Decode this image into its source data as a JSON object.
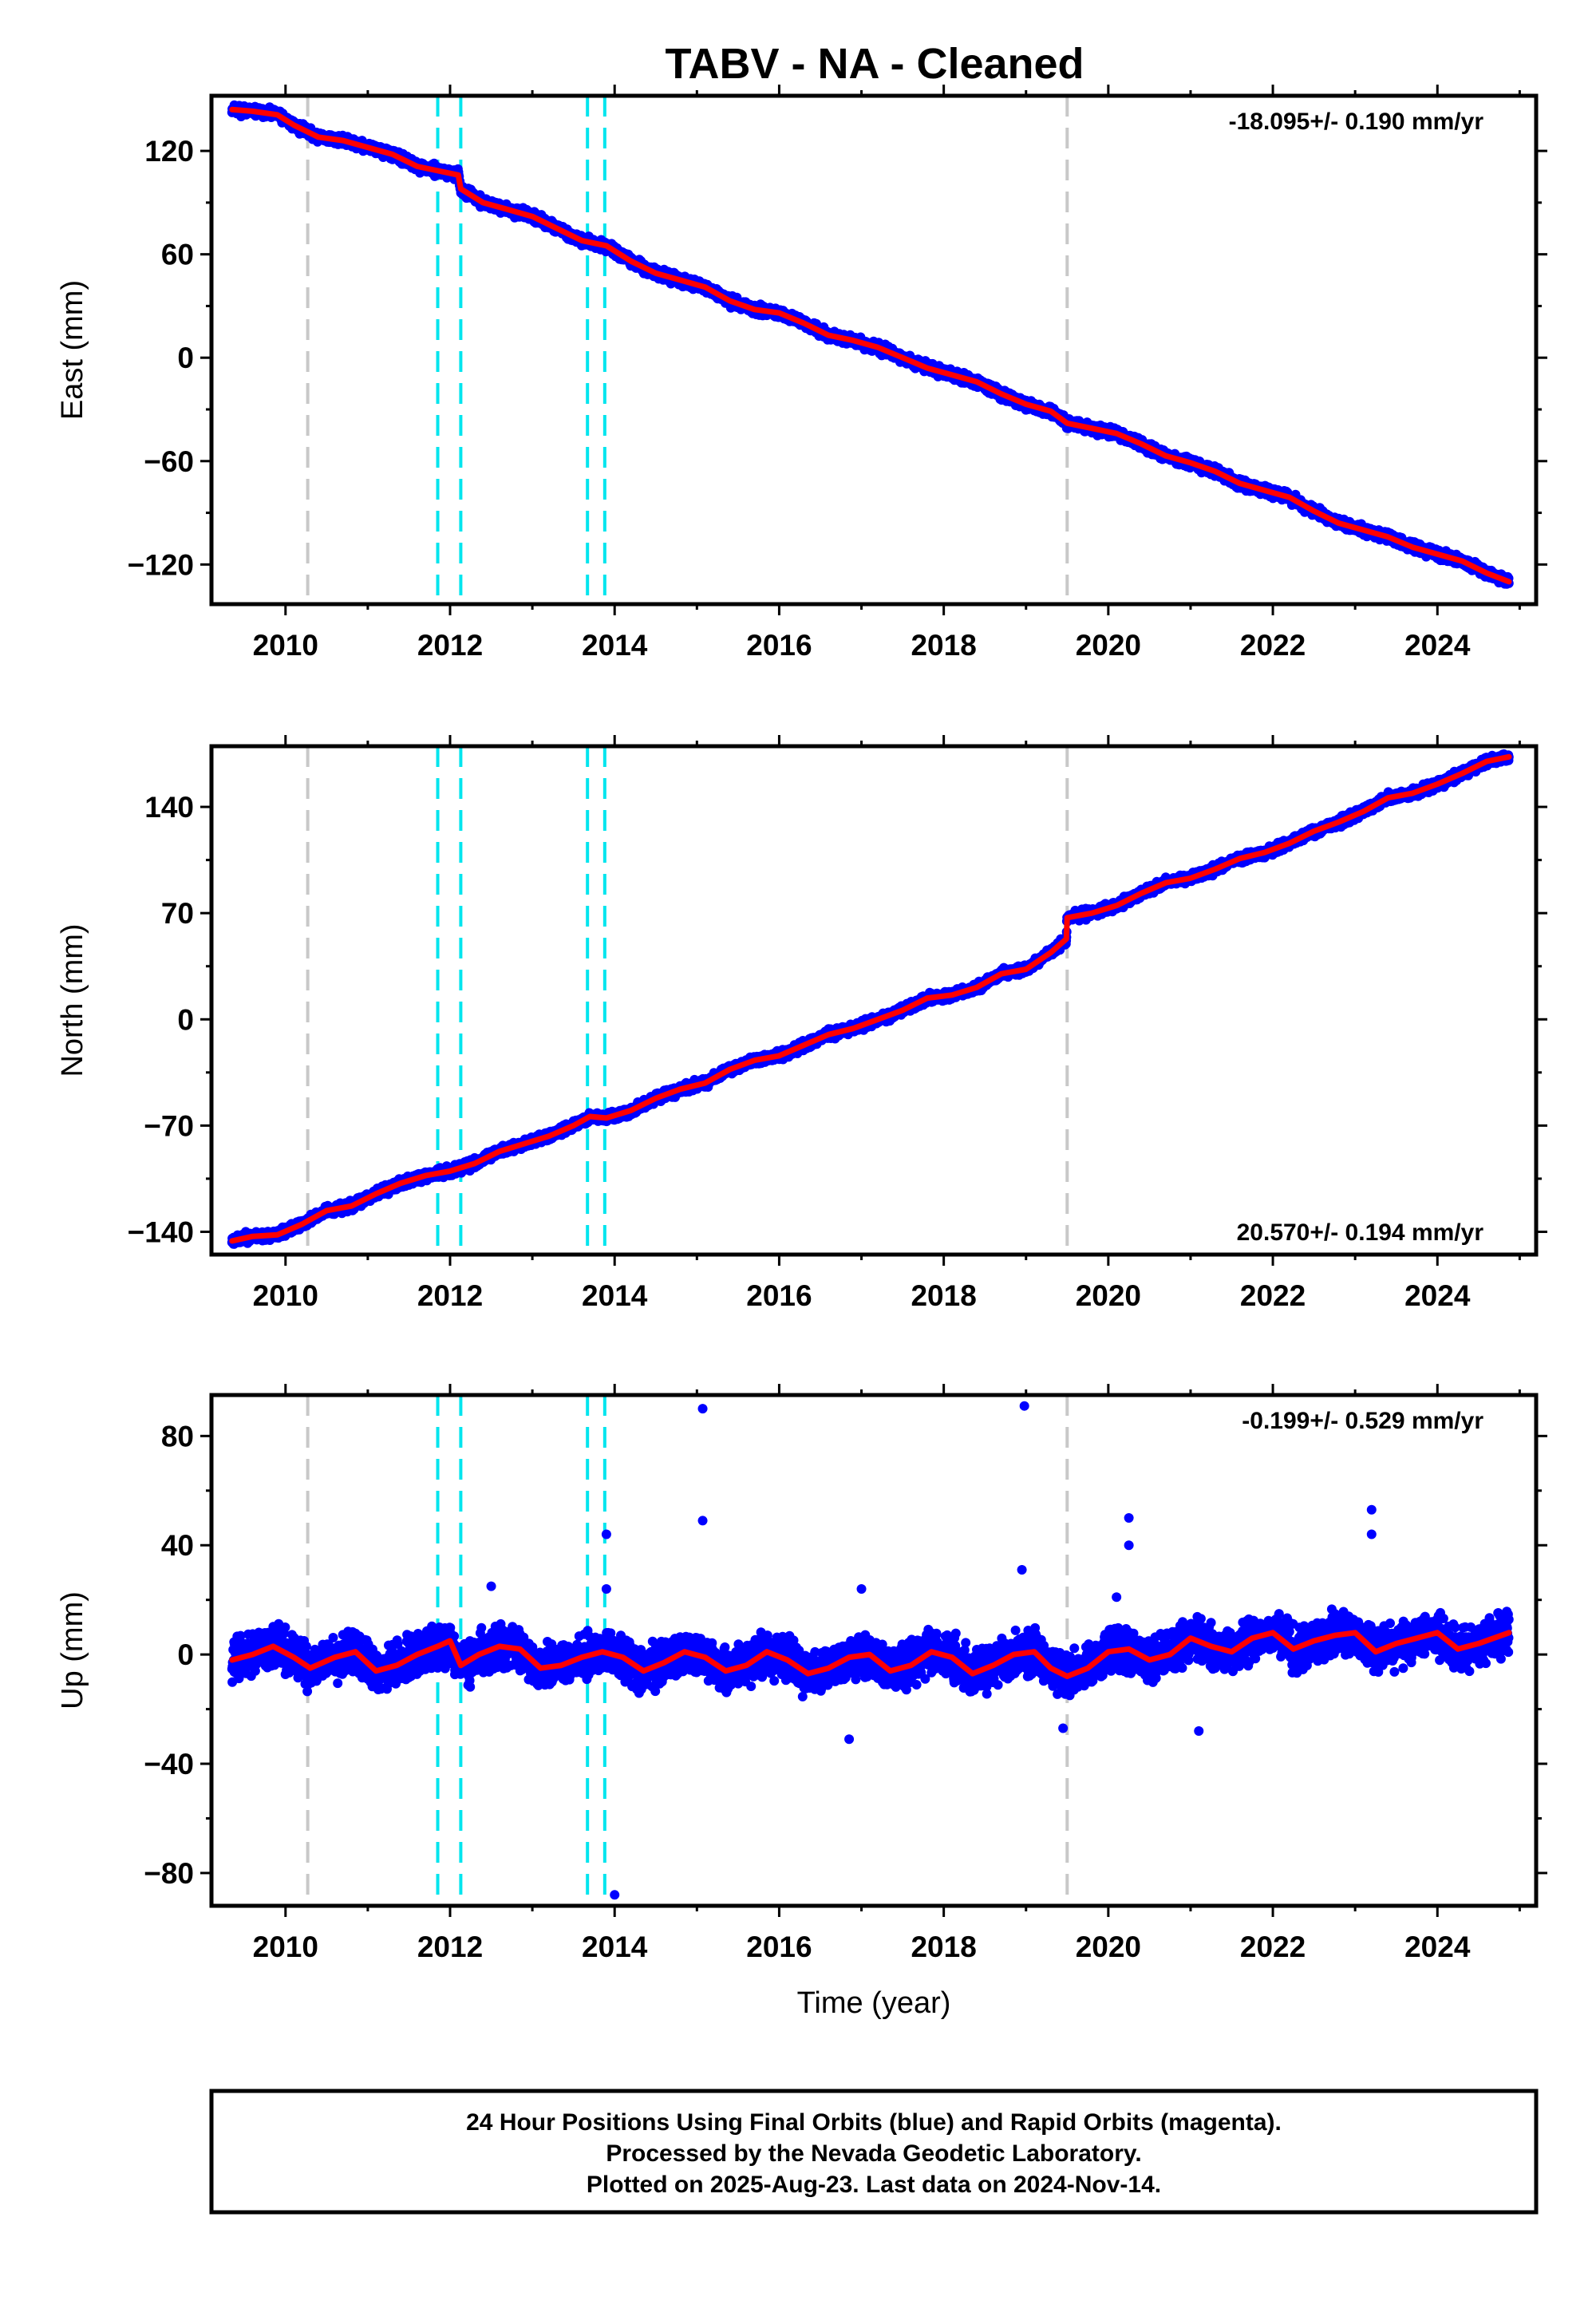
{
  "title": "TABV  - NA - Cleaned",
  "footer_lines": [
    "24 Hour Positions Using Final Orbits (blue) and Rapid Orbits (magenta).",
    "Processed by the Nevada Geodetic Laboratory.",
    "Plotted on 2025-Aug-23. Last data on 2024-Nov-14."
  ],
  "colors": {
    "data_points": "#0000ff",
    "model_line": "#ff0000",
    "equipment_change_lines": "#00e5ee",
    "other_event_lines": "#c8c8c8"
  },
  "chart_data": [
    {
      "type": "scatter",
      "name": "east",
      "ylabel": "East (mm)",
      "xlabel": "",
      "xlim": [
        2009.1,
        2025.2
      ],
      "ylim": [
        -143,
        152
      ],
      "yticks": [
        120,
        60,
        0,
        -60,
        -120
      ],
      "yticklabels": [
        "120",
        "60",
        "0",
        "−60",
        "−120"
      ],
      "xticks": [
        2010,
        2012,
        2014,
        2016,
        2018,
        2020,
        2022,
        2024
      ],
      "xticklabels": [
        "2010",
        "2012",
        "2014",
        "2016",
        "2018",
        "2020",
        "2022",
        "2024"
      ],
      "rate_text": "-18.095+/- 0.190 mm/yr",
      "rate_pos": "top-right",
      "cyan_lines": [
        2011.85,
        2012.13,
        2013.67,
        2013.88
      ],
      "gray_lines": [
        2010.27,
        2019.5
      ],
      "model_x": [
        2009.35,
        2009.6,
        2009.9,
        2010.1,
        2010.4,
        2010.7,
        2011.0,
        2011.3,
        2011.6,
        2011.9,
        2012.1,
        2012.13,
        2012.4,
        2012.7,
        2013.0,
        2013.3,
        2013.6,
        2013.9,
        2014.2,
        2014.5,
        2014.8,
        2015.1,
        2015.4,
        2015.7,
        2016.0,
        2016.3,
        2016.6,
        2016.9,
        2017.2,
        2017.5,
        2017.8,
        2018.1,
        2018.4,
        2018.7,
        2019.0,
        2019.3,
        2019.5,
        2019.8,
        2020.1,
        2020.4,
        2020.7,
        2021.0,
        2021.3,
        2021.6,
        2021.9,
        2022.2,
        2022.5,
        2022.8,
        2023.1,
        2023.4,
        2023.7,
        2024.0,
        2024.3,
        2024.6,
        2024.87
      ],
      "model_y": [
        144,
        143,
        141,
        135,
        128,
        126,
        122,
        118,
        111,
        108,
        106,
        98,
        90,
        86,
        82,
        75,
        68,
        65,
        56,
        49,
        45,
        41,
        33,
        28,
        26,
        20,
        13,
        10,
        6,
        0,
        -6,
        -10,
        -14,
        -21,
        -27,
        -31,
        -38,
        -41,
        -44,
        -50,
        -57,
        -61,
        -66,
        -73,
        -77,
        -81,
        -89,
        -96,
        -100,
        -104,
        -110,
        -114,
        -118,
        -125,
        -130
      ],
      "y_scatter": 2.2,
      "seed": 11
    },
    {
      "type": "scatter",
      "name": "north",
      "ylabel": "North (mm)",
      "xlabel": "",
      "xlim": [
        2009.1,
        2025.2
      ],
      "ylim": [
        -155,
        180
      ],
      "yticks": [
        140,
        70,
        0,
        -70,
        -140
      ],
      "yticklabels": [
        "140",
        "70",
        "0",
        "−70",
        "−140"
      ],
      "xticks": [
        2010,
        2012,
        2014,
        2016,
        2018,
        2020,
        2022,
        2024
      ],
      "xticklabels": [
        "2010",
        "2012",
        "2014",
        "2016",
        "2018",
        "2020",
        "2022",
        "2024"
      ],
      "rate_text": "20.570+/- 0.194 mm/yr",
      "rate_pos": "bottom-right",
      "cyan_lines": [
        2011.85,
        2012.13,
        2013.67,
        2013.88
      ],
      "gray_lines": [
        2010.27,
        2019.5
      ],
      "model_x": [
        2009.35,
        2009.6,
        2009.9,
        2010.2,
        2010.5,
        2010.8,
        2011.1,
        2011.4,
        2011.7,
        2012.0,
        2012.3,
        2012.6,
        2012.9,
        2013.2,
        2013.5,
        2013.7,
        2013.9,
        2014.2,
        2014.5,
        2014.8,
        2015.1,
        2015.4,
        2015.7,
        2016.0,
        2016.3,
        2016.6,
        2016.9,
        2017.2,
        2017.5,
        2017.8,
        2018.1,
        2018.4,
        2018.7,
        2019.0,
        2019.3,
        2019.49,
        2019.5,
        2019.8,
        2020.1,
        2020.4,
        2020.7,
        2021.0,
        2021.3,
        2021.6,
        2021.9,
        2022.2,
        2022.5,
        2022.8,
        2023.1,
        2023.4,
        2023.7,
        2024.0,
        2024.3,
        2024.6,
        2024.87
      ],
      "model_y": [
        -146,
        -143,
        -142,
        -135,
        -126,
        -123,
        -115,
        -108,
        -103,
        -100,
        -95,
        -87,
        -82,
        -77,
        -70,
        -64,
        -65,
        -60,
        -52,
        -46,
        -42,
        -33,
        -27,
        -24,
        -17,
        -10,
        -6,
        0,
        6,
        14,
        16,
        21,
        30,
        33,
        44,
        53,
        67,
        70,
        75,
        83,
        90,
        93,
        99,
        106,
        110,
        116,
        124,
        130,
        137,
        146,
        149,
        155,
        162,
        170,
        173
      ],
      "y_scatter": 2.4,
      "seed": 23
    },
    {
      "type": "scatter",
      "name": "up",
      "ylabel": "Up (mm)",
      "xlabel": "Time (year)",
      "xlim": [
        2009.1,
        2025.2
      ],
      "ylim": [
        -92,
        95
      ],
      "yticks": [
        80,
        40,
        0,
        -40,
        -80
      ],
      "yticklabels": [
        "80",
        "40",
        "0",
        "−40",
        "−80"
      ],
      "xticks": [
        2010,
        2012,
        2014,
        2016,
        2018,
        2020,
        2022,
        2024
      ],
      "xticklabels": [
        "2010",
        "2012",
        "2014",
        "2016",
        "2018",
        "2020",
        "2022",
        "2024"
      ],
      "rate_text": "-0.199+/- 0.529 mm/yr",
      "rate_pos": "top-right",
      "cyan_lines": [
        2011.85,
        2012.13,
        2013.67,
        2013.88
      ],
      "gray_lines": [
        2010.27,
        2019.5
      ],
      "model_x": [
        2009.35,
        2009.6,
        2009.85,
        2010.1,
        2010.3,
        2010.6,
        2010.85,
        2011.1,
        2011.35,
        2011.6,
        2011.85,
        2012.0,
        2012.13,
        2012.35,
        2012.6,
        2012.85,
        2013.1,
        2013.35,
        2013.6,
        2013.85,
        2014.1,
        2014.35,
        2014.6,
        2014.85,
        2015.1,
        2015.35,
        2015.6,
        2015.85,
        2016.1,
        2016.35,
        2016.6,
        2016.85,
        2017.1,
        2017.35,
        2017.6,
        2017.85,
        2018.1,
        2018.35,
        2018.6,
        2018.85,
        2019.1,
        2019.3,
        2019.5,
        2019.75,
        2020.0,
        2020.25,
        2020.5,
        2020.75,
        2021.0,
        2021.25,
        2021.5,
        2021.75,
        2022.0,
        2022.25,
        2022.5,
        2022.75,
        2023.0,
        2023.25,
        2023.5,
        2023.75,
        2024.0,
        2024.25,
        2024.5,
        2024.87
      ],
      "model_y": [
        -2,
        0,
        3,
        -1,
        -5,
        -1,
        1,
        -6,
        -4,
        0,
        3,
        5,
        -4,
        0,
        3,
        2,
        -5,
        -4,
        -1,
        1,
        -1,
        -6,
        -3,
        1,
        -1,
        -6,
        -4,
        1,
        -2,
        -7,
        -5,
        -1,
        0,
        -6,
        -4,
        1,
        -1,
        -7,
        -4,
        0,
        1,
        -5,
        -8,
        -5,
        1,
        2,
        -2,
        0,
        6,
        3,
        1,
        6,
        8,
        2,
        5,
        7,
        8,
        1,
        4,
        6,
        8,
        2,
        4,
        8
      ],
      "y_scatter": 6.0,
      "outliers_x": [
        2015.07,
        2018.98,
        2015.07,
        2018.95,
        2020.25,
        2020.25,
        2023.2,
        2023.2,
        2013.9,
        2013.9,
        2012.5,
        2017.0,
        2021.1,
        2016.85,
        2019.45,
        2020.1,
        2014.0
      ],
      "outliers_y": [
        90,
        91,
        49,
        31,
        50,
        40,
        53,
        44,
        44,
        24,
        25,
        24,
        -28,
        -31,
        -27,
        21,
        -88
      ],
      "seed": 37
    }
  ]
}
